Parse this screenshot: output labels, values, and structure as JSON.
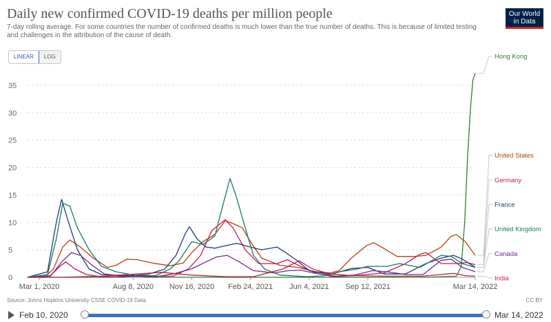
{
  "header": {
    "title": "Daily new confirmed COVID-19 deaths per million people",
    "subtitle": "7-day rolling average. For some countries the number of confirmed deaths is much lower than the true number of deaths. This is because of limited testing and challenges in the attribution of the cause of death.",
    "logo_line1": "Our World",
    "logo_line2": "in Data"
  },
  "scale_toggle": {
    "linear": "LINEAR",
    "log": "LOG",
    "selected": "LINEAR"
  },
  "footer": {
    "source": "Source: Johns Hopkins University CSSE COVID-19 Data",
    "license": "CC BY"
  },
  "timeline": {
    "start": "Feb 10, 2020",
    "end": "Mar 14, 2022",
    "play_icon": "play-icon"
  },
  "chart_data": {
    "type": "line",
    "title": "Daily new confirmed COVID-19 deaths per million people",
    "xlabel": "",
    "ylabel": "",
    "ylim": [
      0,
      37.5
    ],
    "yticks": [
      0,
      5,
      10,
      15,
      20,
      25,
      30,
      35
    ],
    "xlim": [
      "2020-02-10",
      "2022-03-14"
    ],
    "xticks": [
      {
        "label": "Mar 1, 2020",
        "date": "2020-03-01"
      },
      {
        "label": "Aug 8, 2020",
        "date": "2020-08-08"
      },
      {
        "label": "Nov 16, 2020",
        "date": "2020-11-16"
      },
      {
        "label": "Feb 24, 2021",
        "date": "2021-02-24"
      },
      {
        "label": "Jun 4, 2021",
        "date": "2021-06-04"
      },
      {
        "label": "Sep 12, 2021",
        "date": "2021-09-12"
      },
      {
        "label": "Mar 14, 2022",
        "date": "2022-03-14"
      }
    ],
    "grid": true,
    "legend_position": "right-end-labels",
    "series": [
      {
        "name": "Hong Kong",
        "color": "#2e7d32",
        "points": [
          [
            "2020-02-10",
            0
          ],
          [
            "2020-07-25",
            0
          ],
          [
            "2020-08-10",
            0.3
          ],
          [
            "2020-09-01",
            0
          ],
          [
            "2021-12-20",
            0
          ],
          [
            "2022-02-10",
            0.2
          ],
          [
            "2022-02-18",
            2
          ],
          [
            "2022-02-24",
            10
          ],
          [
            "2022-03-01",
            22
          ],
          [
            "2022-03-06",
            31
          ],
          [
            "2022-03-10",
            36
          ],
          [
            "2022-03-14",
            37.2
          ]
        ]
      },
      {
        "name": "United States",
        "color": "#b5400c",
        "points": [
          [
            "2020-02-10",
            0
          ],
          [
            "2020-03-10",
            0
          ],
          [
            "2020-03-25",
            1.5
          ],
          [
            "2020-04-10",
            5.5
          ],
          [
            "2020-04-22",
            6.8
          ],
          [
            "2020-05-10",
            5.5
          ],
          [
            "2020-06-01",
            3.5
          ],
          [
            "2020-06-25",
            1.8
          ],
          [
            "2020-07-10",
            2.2
          ],
          [
            "2020-07-28",
            3.3
          ],
          [
            "2020-08-15",
            3.2
          ],
          [
            "2020-09-10",
            2.6
          ],
          [
            "2020-10-10",
            2.1
          ],
          [
            "2020-11-01",
            2.6
          ],
          [
            "2020-11-16",
            4.5
          ],
          [
            "2020-12-05",
            6.5
          ],
          [
            "2020-12-25",
            7.8
          ],
          [
            "2021-01-12",
            10.3
          ],
          [
            "2021-01-25",
            9.8
          ],
          [
            "2021-02-10",
            9
          ],
          [
            "2021-02-24",
            6.5
          ],
          [
            "2021-03-15",
            3.5
          ],
          [
            "2021-04-15",
            2.2
          ],
          [
            "2021-05-15",
            1.8
          ],
          [
            "2021-06-15",
            1.0
          ],
          [
            "2021-07-10",
            0.8
          ],
          [
            "2021-07-25",
            1.2
          ],
          [
            "2021-08-15",
            3.5
          ],
          [
            "2021-09-10",
            5.8
          ],
          [
            "2021-09-22",
            6.3
          ],
          [
            "2021-10-10",
            5.2
          ],
          [
            "2021-11-01",
            3.8
          ],
          [
            "2021-12-01",
            3.8
          ],
          [
            "2021-12-20",
            4
          ],
          [
            "2022-01-15",
            5.5
          ],
          [
            "2022-02-01",
            7.5
          ],
          [
            "2022-02-10",
            7.8
          ],
          [
            "2022-02-25",
            6.5
          ],
          [
            "2022-03-14",
            4
          ]
        ]
      },
      {
        "name": "Germany",
        "color": "#c2185b",
        "points": [
          [
            "2020-02-10",
            0
          ],
          [
            "2020-03-20",
            0.3
          ],
          [
            "2020-04-05",
            2
          ],
          [
            "2020-04-15",
            2.8
          ],
          [
            "2020-05-01",
            1.5
          ],
          [
            "2020-05-20",
            0.5
          ],
          [
            "2020-06-15",
            0.1
          ],
          [
            "2020-10-15",
            0.2
          ],
          [
            "2020-11-10",
            1.5
          ],
          [
            "2020-12-01",
            4
          ],
          [
            "2020-12-20",
            8.5
          ],
          [
            "2021-01-12",
            10.5
          ],
          [
            "2021-01-25",
            9
          ],
          [
            "2021-02-15",
            5
          ],
          [
            "2021-03-10",
            2.5
          ],
          [
            "2021-04-10",
            2.5
          ],
          [
            "2021-04-28",
            3.2
          ],
          [
            "2021-05-20",
            2
          ],
          [
            "2021-06-15",
            0.8
          ],
          [
            "2021-07-15",
            0.1
          ],
          [
            "2021-08-20",
            0.3
          ],
          [
            "2021-10-10",
            0.8
          ],
          [
            "2021-11-15",
            2.5
          ],
          [
            "2021-12-10",
            4.2
          ],
          [
            "2021-12-20",
            4.5
          ],
          [
            "2022-01-15",
            2.5
          ],
          [
            "2022-02-10",
            2.5
          ],
          [
            "2022-02-28",
            2.7
          ],
          [
            "2022-03-14",
            2.3
          ]
        ]
      },
      {
        "name": "France",
        "color": "#1a3a6c",
        "points": [
          [
            "2020-02-10",
            0
          ],
          [
            "2020-03-15",
            1
          ],
          [
            "2020-03-30",
            10
          ],
          [
            "2020-04-08",
            14.2
          ],
          [
            "2020-04-20",
            10
          ],
          [
            "2020-05-05",
            5
          ],
          [
            "2020-05-25",
            1.5
          ],
          [
            "2020-06-15",
            0.5
          ],
          [
            "2020-08-01",
            0.3
          ],
          [
            "2020-09-01",
            0.5
          ],
          [
            "2020-10-01",
            1.5
          ],
          [
            "2020-10-20",
            4
          ],
          [
            "2020-11-05",
            8
          ],
          [
            "2020-11-12",
            9.2
          ],
          [
            "2020-11-25",
            7
          ],
          [
            "2020-12-10",
            5.5
          ],
          [
            "2020-12-25",
            5.3
          ],
          [
            "2021-01-10",
            5.7
          ],
          [
            "2021-02-01",
            6.2
          ],
          [
            "2021-02-24",
            5.5
          ],
          [
            "2021-03-15",
            5
          ],
          [
            "2021-04-10",
            5.5
          ],
          [
            "2021-04-25",
            4.5
          ],
          [
            "2021-05-15",
            3
          ],
          [
            "2021-06-04",
            1.2
          ],
          [
            "2021-07-10",
            0.5
          ],
          [
            "2021-08-15",
            1.6
          ],
          [
            "2021-09-12",
            1.8
          ],
          [
            "2021-10-10",
            0.6
          ],
          [
            "2021-11-15",
            0.6
          ],
          [
            "2021-12-20",
            2.5
          ],
          [
            "2022-01-15",
            3.5
          ],
          [
            "2022-02-05",
            4
          ],
          [
            "2022-02-20",
            3.3
          ],
          [
            "2022-03-14",
            1.8
          ]
        ]
      },
      {
        "name": "United Kingdom",
        "color": "#18766b",
        "points": [
          [
            "2020-02-10",
            0
          ],
          [
            "2020-03-15",
            0.5
          ],
          [
            "2020-03-30",
            7
          ],
          [
            "2020-04-10",
            13.5
          ],
          [
            "2020-04-22",
            13
          ],
          [
            "2020-05-05",
            9
          ],
          [
            "2020-05-25",
            5
          ],
          [
            "2020-06-15",
            2
          ],
          [
            "2020-07-10",
            1
          ],
          [
            "2020-08-15",
            0.3
          ],
          [
            "2020-09-15",
            0.3
          ],
          [
            "2020-10-10",
            1.5
          ],
          [
            "2020-10-25",
            3
          ],
          [
            "2020-11-16",
            6.5
          ],
          [
            "2020-12-05",
            6
          ],
          [
            "2020-12-25",
            7.5
          ],
          [
            "2021-01-10",
            14
          ],
          [
            "2021-01-20",
            18
          ],
          [
            "2021-01-30",
            15
          ],
          [
            "2021-02-15",
            9
          ],
          [
            "2021-03-01",
            4
          ],
          [
            "2021-03-20",
            1.5
          ],
          [
            "2021-04-15",
            0.4
          ],
          [
            "2021-06-01",
            0.1
          ],
          [
            "2021-07-01",
            0.3
          ],
          [
            "2021-07-25",
            1
          ],
          [
            "2021-08-25",
            1.5
          ],
          [
            "2021-09-12",
            2
          ],
          [
            "2021-10-15",
            2
          ],
          [
            "2021-11-05",
            2.5
          ],
          [
            "2021-12-10",
            1.8
          ],
          [
            "2022-01-15",
            4
          ],
          [
            "2022-02-01",
            3.8
          ],
          [
            "2022-02-20",
            2.5
          ],
          [
            "2022-03-14",
            1.8
          ]
        ]
      },
      {
        "name": "Canada",
        "color": "#6d2c8c",
        "points": [
          [
            "2020-02-10",
            0
          ],
          [
            "2020-03-20",
            0.2
          ],
          [
            "2020-04-10",
            3
          ],
          [
            "2020-04-25",
            4.5
          ],
          [
            "2020-05-10",
            4
          ],
          [
            "2020-05-30",
            2.2
          ],
          [
            "2020-06-20",
            0.6
          ],
          [
            "2020-07-20",
            0.2
          ],
          [
            "2020-09-15",
            0.1
          ],
          [
            "2020-10-15",
            0.6
          ],
          [
            "2020-11-15",
            1.5
          ],
          [
            "2020-12-10",
            2.8
          ],
          [
            "2020-12-28",
            3.7
          ],
          [
            "2021-01-15",
            4
          ],
          [
            "2021-02-05",
            2.8
          ],
          [
            "2021-03-01",
            1.2
          ],
          [
            "2021-04-05",
            0.8
          ],
          [
            "2021-04-30",
            1.2
          ],
          [
            "2021-05-20",
            1.3
          ],
          [
            "2021-06-15",
            0.7
          ],
          [
            "2021-07-20",
            0.2
          ],
          [
            "2021-08-20",
            0.4
          ],
          [
            "2021-09-20",
            1.2
          ],
          [
            "2021-10-15",
            1
          ],
          [
            "2021-11-15",
            0.5
          ],
          [
            "2021-12-15",
            0.5
          ],
          [
            "2022-01-15",
            3.1
          ],
          [
            "2022-02-01",
            3.3
          ],
          [
            "2022-02-20",
            1.8
          ],
          [
            "2022-03-14",
            1
          ]
        ]
      },
      {
        "name": "India",
        "color": "#b51f43",
        "points": [
          [
            "2020-02-10",
            0
          ],
          [
            "2020-04-10",
            0
          ],
          [
            "2020-06-15",
            0.2
          ],
          [
            "2020-08-15",
            0.6
          ],
          [
            "2020-09-25",
            0.9
          ],
          [
            "2020-11-15",
            0.4
          ],
          [
            "2021-01-15",
            0.1
          ],
          [
            "2021-03-01",
            0.1
          ],
          [
            "2021-04-20",
            1.5
          ],
          [
            "2021-05-18",
            3
          ],
          [
            "2021-06-10",
            1.5
          ],
          [
            "2021-07-10",
            0.6
          ],
          [
            "2021-08-15",
            0.3
          ],
          [
            "2021-10-15",
            0.2
          ],
          [
            "2021-12-15",
            0.2
          ],
          [
            "2022-01-25",
            0.6
          ],
          [
            "2022-02-05",
            0.7
          ],
          [
            "2022-02-25",
            0.3
          ],
          [
            "2022-03-14",
            0.2
          ]
        ]
      }
    ]
  }
}
